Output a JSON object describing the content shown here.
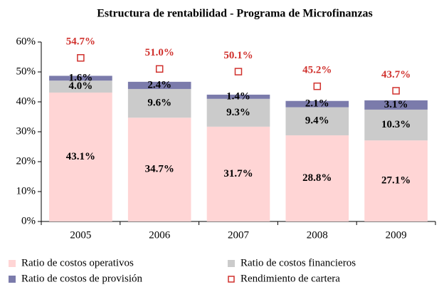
{
  "chart_data": {
    "type": "bar",
    "stacked": true,
    "title": "Estructura de rentabilidad - Programa de Microfinanzas",
    "categories": [
      "2005",
      "2006",
      "2007",
      "2008",
      "2009"
    ],
    "ylim": [
      0,
      60
    ],
    "yticks": [
      {
        "value": 0,
        "label": "0%"
      },
      {
        "value": 10,
        "label": "10%"
      },
      {
        "value": 20,
        "label": "20%"
      },
      {
        "value": 30,
        "label": "30%"
      },
      {
        "value": 40,
        "label": "40%"
      },
      {
        "value": 50,
        "label": "50%"
      },
      {
        "value": 60,
        "label": "60%"
      }
    ],
    "grid": false,
    "legend": "bottom",
    "series": [
      {
        "name": "Ratio de costos operativos",
        "type": "bar",
        "color": "#ffd5d5",
        "values": [
          43.1,
          34.7,
          31.7,
          28.8,
          27.1
        ],
        "value_labels": [
          "43.1%",
          "34.7%",
          "31.7%",
          "28.8%",
          "27.1%"
        ]
      },
      {
        "name": "Ratio de costos financieros",
        "type": "bar",
        "color": "#cbcbcb",
        "values": [
          4.0,
          9.6,
          9.3,
          9.4,
          10.3
        ],
        "value_labels": [
          "4.0%",
          "9.6%",
          "9.3%",
          "9.4%",
          "10.3%"
        ]
      },
      {
        "name": "Ratio de costos de provisión",
        "type": "bar",
        "color": "#7b7bab",
        "values": [
          1.6,
          2.4,
          1.4,
          2.1,
          3.1
        ],
        "value_labels": [
          "1.6%",
          "2.4%",
          "1.4%",
          "2.1%",
          "3.1%"
        ]
      },
      {
        "name": "Rendimiento de cartera",
        "type": "marker",
        "color": "#d0312d",
        "values": [
          54.7,
          51.0,
          50.1,
          45.2,
          43.7
        ],
        "value_labels": [
          "54.7%",
          "51.0%",
          "50.1%",
          "45.2%",
          "43.7%"
        ]
      }
    ]
  }
}
